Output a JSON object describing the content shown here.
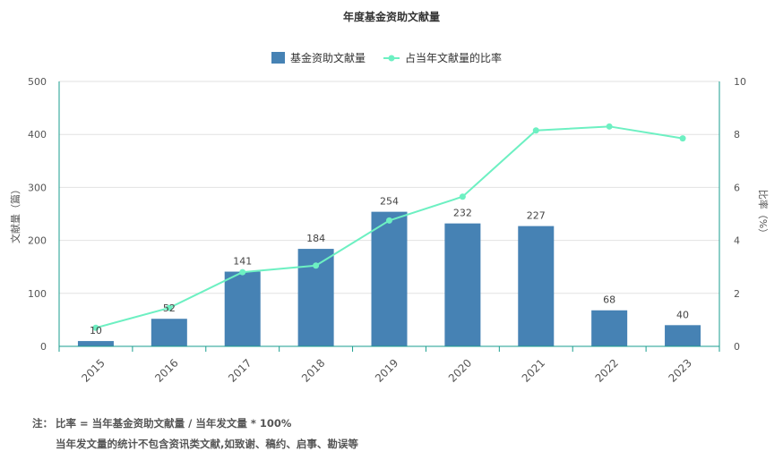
{
  "chart_data": {
    "type": "bar",
    "title": "年度基金资助文献量",
    "categories": [
      "2015",
      "2016",
      "2017",
      "2018",
      "2019",
      "2020",
      "2021",
      "2022",
      "2023"
    ],
    "series": [
      {
        "name": "基金资助文献量",
        "kind": "bar",
        "axis": "left",
        "values": [
          10,
          52,
          141,
          184,
          254,
          232,
          227,
          68,
          40
        ],
        "color": "#4682b4"
      },
      {
        "name": "占当年文献量的比率",
        "kind": "line",
        "axis": "right",
        "values": [
          0.7,
          1.45,
          2.8,
          3.05,
          4.75,
          5.65,
          8.15,
          8.3,
          7.85
        ],
        "color": "#6df0c2"
      }
    ],
    "ylabel": "文献量（篇）",
    "y2label": "比率（%）",
    "ylim": [
      0,
      500
    ],
    "y2lim": [
      0,
      10
    ],
    "yticks": [
      "0",
      "100",
      "200",
      "300",
      "400",
      "500"
    ],
    "y2ticks": [
      "0",
      "2",
      "4",
      "6",
      "8",
      "10"
    ],
    "grid": true,
    "legend_position": "top-center",
    "axis_color": "#1a9e8f"
  },
  "notes": {
    "prefix": "注：",
    "line1": "比率 = 当年基金资助文献量 / 当年发文量 * 100%",
    "line2": "当年发文量的统计不包含资讯类文献,如致谢、稿约、启事、勘误等"
  }
}
